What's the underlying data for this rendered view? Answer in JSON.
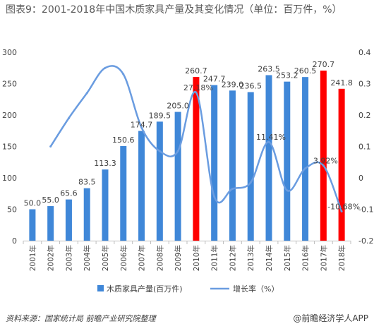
{
  "header": {
    "title": "图表9：2001-2018年中国木质家具产量及其变化情况（单位：百万件，%）"
  },
  "footer": {
    "source": "资料来源：国家统计局 前瞻产业研究院整理",
    "brand": "@前瞻经济学人APP"
  },
  "chart_data": {
    "type": "bar",
    "categories": [
      "2001年",
      "2002年",
      "2003年",
      "2004年",
      "2005年",
      "2006年",
      "2007年",
      "2008年",
      "2009年",
      "2010年",
      "2011年",
      "2012年",
      "2013年",
      "2014年",
      "2015年",
      "2016年",
      "2017年",
      "2018年"
    ],
    "series": [
      {
        "name": "木质家具产量(百万件)",
        "type": "bar",
        "axis": "left",
        "values": [
          50.0,
          55.0,
          65.6,
          83.5,
          113.3,
          150.6,
          174.7,
          189.5,
          205.0,
          260.7,
          247.7,
          239.0,
          236.5,
          263.5,
          253.2,
          260.5,
          270.7,
          241.8
        ],
        "labels": [
          "50.0",
          "55.0",
          "65.6",
          "83.5",
          "113.3",
          "150.6",
          "174.7",
          "189.5",
          "205.0",
          "260.7",
          "247.7",
          "239.0",
          "236.5",
          "263.5",
          "253.2",
          "260.5",
          "270.7",
          "241.8"
        ]
      },
      {
        "name": "增长率（%）",
        "type": "line",
        "axis": "right",
        "values": [
          null,
          0.1,
          0.19,
          0.27,
          0.35,
          0.33,
          0.16,
          0.085,
          0.085,
          0.2718,
          -0.06,
          -0.035,
          -0.015,
          0.1141,
          -0.04,
          0.03,
          0.0392,
          -0.1068
        ],
        "labels": {
          "9": "27.18%",
          "13": "11.41%",
          "16": "3.92%",
          "17": "-10.68%"
        }
      }
    ],
    "left_axis": {
      "min": 0,
      "max": 300,
      "ticks": [
        0,
        50,
        100,
        150,
        200,
        250,
        300
      ],
      "tick_labels": [
        "0",
        "50",
        "100",
        "150",
        "200",
        "250",
        "300"
      ]
    },
    "right_axis": {
      "min": -0.2,
      "max": 0.4,
      "ticks": [
        -0.2,
        -0.1,
        0,
        0.1,
        0.2,
        0.3,
        0.4
      ],
      "tick_labels": [
        "-0.2",
        "-0.1",
        "0",
        "0.1",
        "0.2",
        "0.3",
        "0.4"
      ]
    },
    "highlight_indices": [
      9,
      16,
      17
    ],
    "colors": {
      "bar": "#3f87d8",
      "bar_highlight": "#ff0000",
      "line": "#6a9ce0",
      "axis": "#bfbfbf",
      "text": "#404040"
    },
    "legend_position": "bottom",
    "grid": false
  }
}
